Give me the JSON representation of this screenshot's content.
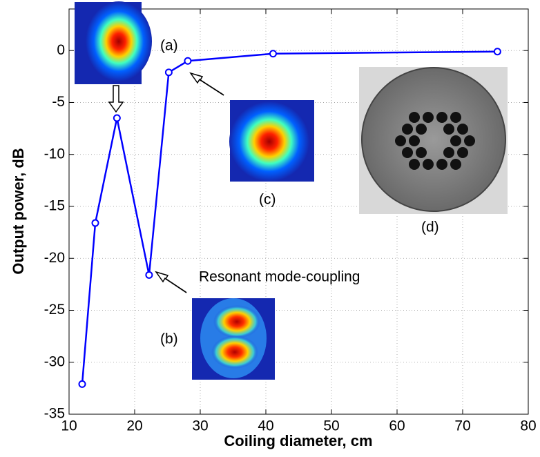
{
  "chart_data": {
    "type": "line",
    "x_label": "Coiling diameter, cm",
    "y_label": "Output power, dB",
    "x": [
      12,
      14,
      17.3,
      22.2,
      25.2,
      28.1,
      41.1,
      75.3
    ],
    "values": [
      -32.1,
      -16.6,
      -6.5,
      -21.6,
      -2.1,
      -1.0,
      -0.3,
      -0.1
    ],
    "color": "#0000ff",
    "xlim": [
      10,
      80
    ],
    "xticks": [
      10,
      20,
      30,
      40,
      50,
      60,
      70,
      80
    ],
    "ylim": [
      -35,
      4
    ],
    "yticks": [
      -35,
      -30,
      -25,
      -20,
      -15,
      -10,
      -5,
      0
    ],
    "grid": true,
    "annotations": [
      "(a)",
      "(b)",
      "(c)",
      "(d)",
      "Resonant mode-coupling"
    ]
  }
}
